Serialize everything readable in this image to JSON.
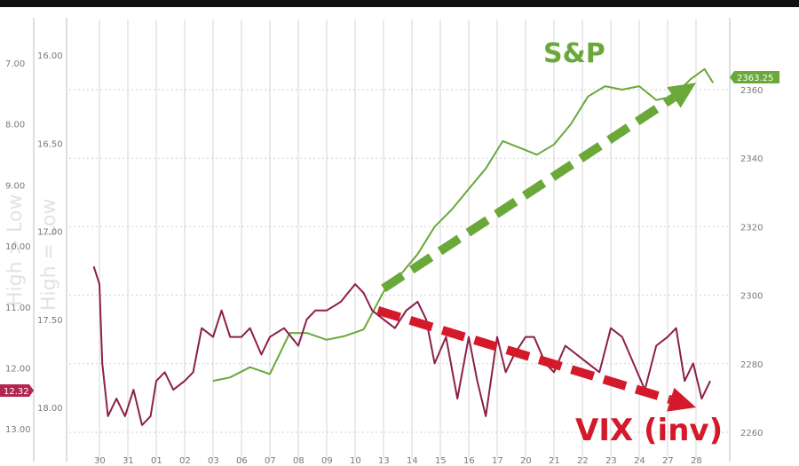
{
  "chart_data": {
    "type": "line",
    "title": "",
    "left_axis_outer_label": "High > Low",
    "left_axis_inner_label": "High = Low",
    "left_axis_outer_ticks": [
      "7.00",
      "8.00",
      "9.00",
      "10.00",
      "11.00",
      "12.00",
      "13.00"
    ],
    "left_axis_inner_ticks": [
      "16.00",
      "16.50",
      "17.00",
      "17.50",
      "18.00"
    ],
    "right_axis_ticks": [
      "2360",
      "2340",
      "2320",
      "2300",
      "2280",
      "2260"
    ],
    "right_ylim": [
      2257,
      2368
    ],
    "vix_inverted_ylim": [
      15.85,
      18.3
    ],
    "x_ticks": [
      "30",
      "31",
      "01",
      "02",
      "03",
      "06",
      "07",
      "08",
      "09",
      "10",
      "13",
      "14",
      "15",
      "16",
      "17",
      "20",
      "21",
      "22",
      "23",
      "24",
      "27",
      "28"
    ],
    "sp_last_badge": "2363.25",
    "vix_last_badge": "12.32",
    "series": [
      {
        "name": "S&P",
        "color": "#6aa83a",
        "axis": "right",
        "x": [
          4.0,
          4.6,
          5.3,
          6.0,
          6.7,
          7.3,
          8.0,
          8.6,
          9.3,
          10.0,
          10.6,
          11.2,
          11.8,
          12.4,
          13.0,
          13.6,
          14.2,
          14.8,
          15.4,
          16.0,
          16.6,
          17.2,
          17.8,
          18.4,
          19.0,
          19.6,
          20.2,
          20.8,
          21.3,
          21.6
        ],
        "values": [
          2275,
          2276,
          2279,
          2277,
          2289,
          2289,
          2287,
          2288,
          2290,
          2301,
          2306,
          2312,
          2320,
          2325,
          2331,
          2337,
          2345,
          2343,
          2341,
          2344,
          2350,
          2358,
          2361,
          2360,
          2361,
          2357,
          2358,
          2363,
          2366,
          2362
        ]
      },
      {
        "name": "VIX (inv)",
        "color": "#8c1f4a",
        "axis": "left_inner",
        "x": [
          -0.2,
          0.0,
          0.1,
          0.3,
          0.6,
          0.9,
          1.2,
          1.5,
          1.8,
          2.0,
          2.3,
          2.6,
          3.0,
          3.3,
          3.6,
          4.0,
          4.3,
          4.6,
          5.0,
          5.3,
          5.7,
          6.0,
          6.5,
          7.0,
          7.3,
          7.6,
          8.0,
          8.5,
          9.0,
          9.3,
          9.6,
          10.0,
          10.4,
          10.8,
          11.2,
          11.5,
          11.8,
          12.2,
          12.6,
          13.0,
          13.3,
          13.6,
          14.0,
          14.3,
          14.6,
          15.0,
          15.3,
          15.7,
          16.0,
          16.4,
          16.8,
          17.2,
          17.6,
          18.0,
          18.4,
          18.8,
          19.2,
          19.6,
          20.0,
          20.3,
          20.6,
          20.9,
          21.2,
          21.5
        ],
        "values": [
          17.2,
          17.3,
          17.75,
          18.05,
          17.95,
          18.05,
          17.9,
          18.1,
          18.05,
          17.85,
          17.8,
          17.9,
          17.85,
          17.8,
          17.55,
          17.6,
          17.45,
          17.6,
          17.6,
          17.55,
          17.7,
          17.6,
          17.55,
          17.65,
          17.5,
          17.45,
          17.45,
          17.4,
          17.3,
          17.35,
          17.45,
          17.5,
          17.55,
          17.45,
          17.4,
          17.5,
          17.75,
          17.6,
          17.95,
          17.6,
          17.85,
          18.05,
          17.6,
          17.8,
          17.7,
          17.6,
          17.6,
          17.75,
          17.8,
          17.65,
          17.7,
          17.75,
          17.8,
          17.55,
          17.6,
          17.75,
          17.9,
          17.65,
          17.6,
          17.55,
          17.85,
          17.75,
          17.95,
          17.85
        ]
      }
    ],
    "annotations": [
      {
        "text": "S&P",
        "color": "#6aa83a"
      },
      {
        "text": "VIX (inv)",
        "color": "#d4192b"
      }
    ],
    "arrows": [
      {
        "name": "sp-trend",
        "color": "#6aa83a",
        "from": {
          "x": 10.0,
          "y": 2302
        },
        "to": {
          "x": 21.0,
          "y": 2362
        }
      },
      {
        "name": "vix-trend",
        "color": "#d4192b",
        "from": {
          "x": 9.8,
          "y": 17.45
        },
        "to": {
          "x": 21.0,
          "y": 18.0
        }
      }
    ],
    "grid": true
  }
}
